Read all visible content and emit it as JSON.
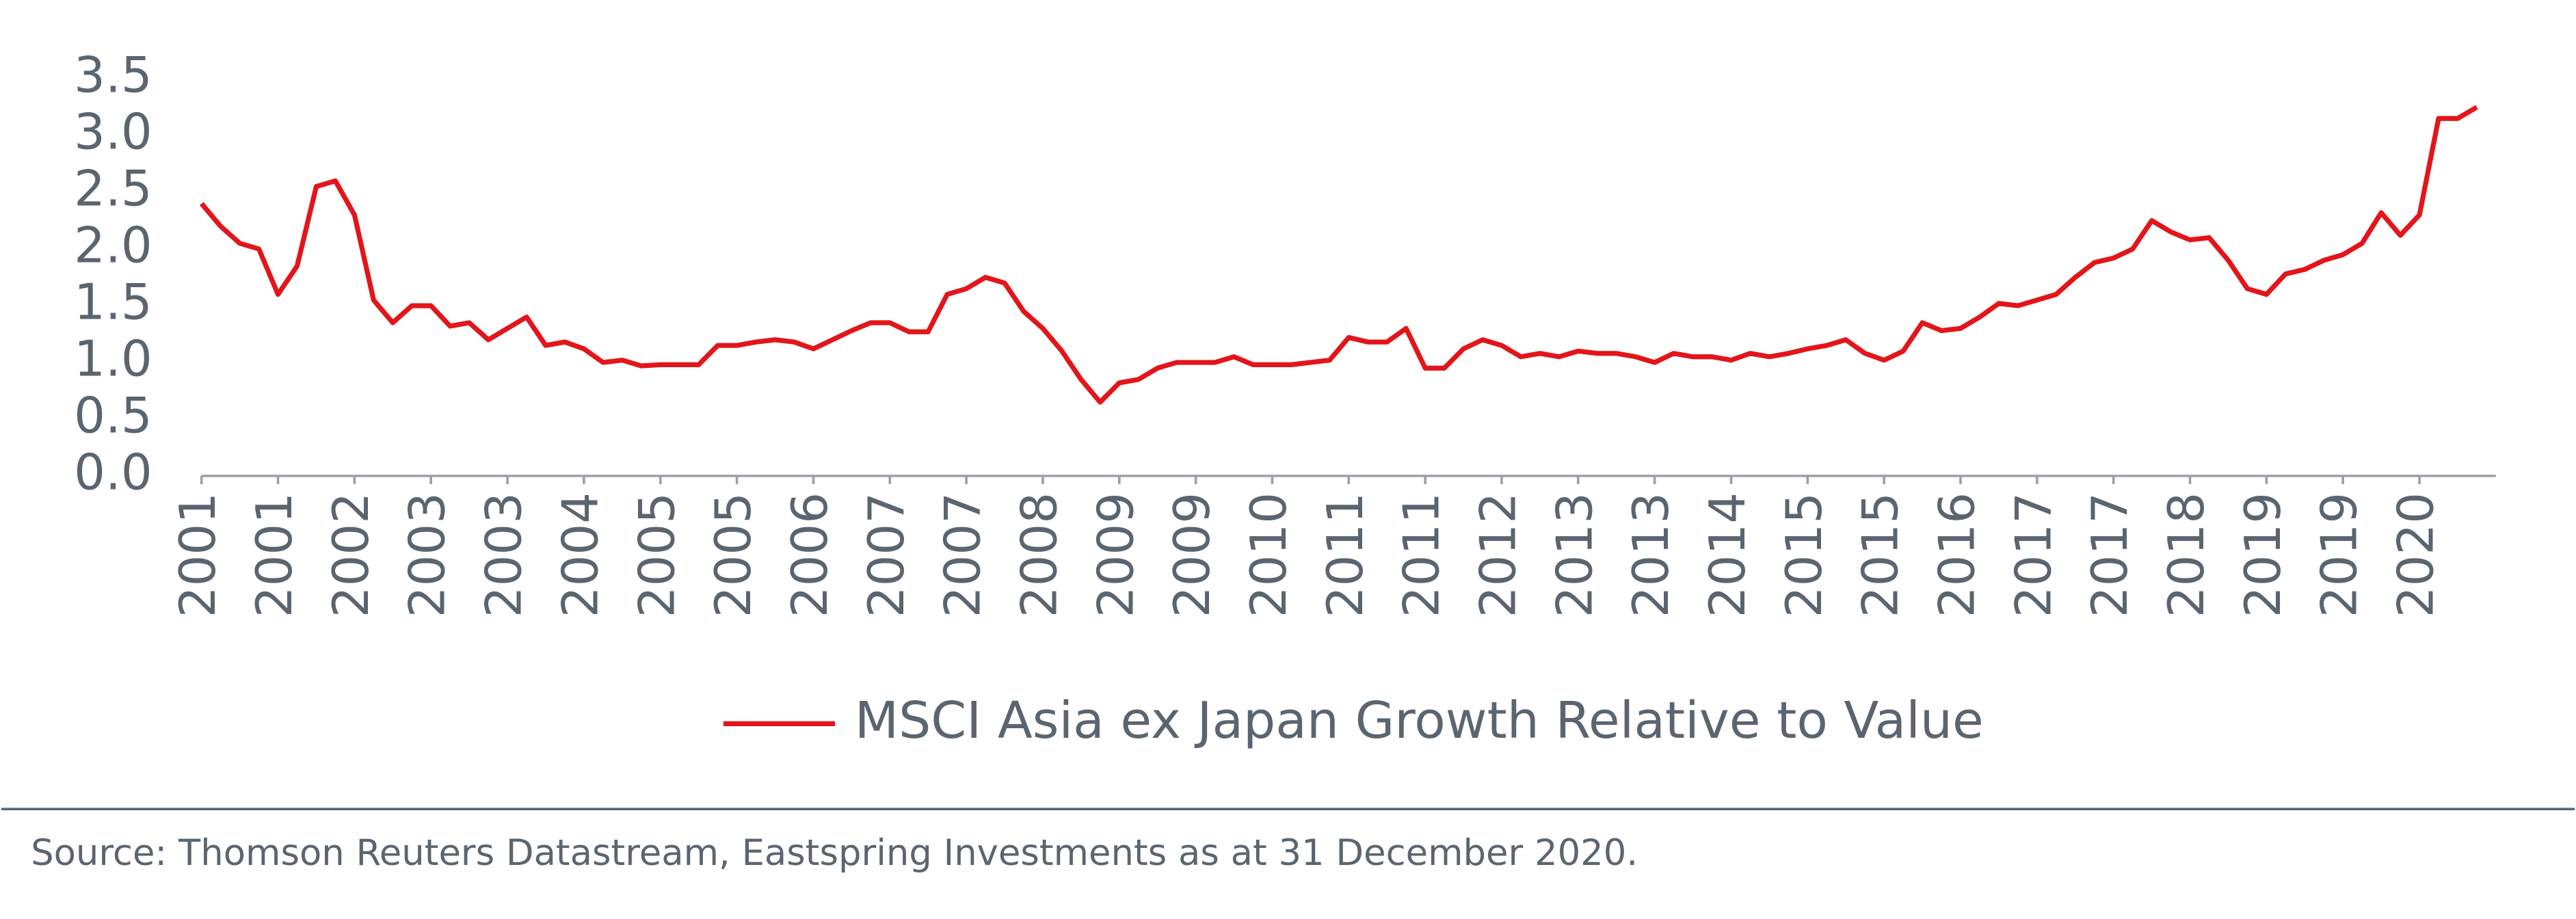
{
  "chart_data": {
    "type": "line",
    "categories": [
      "2001",
      null,
      null,
      null,
      "2001",
      null,
      null,
      null,
      "2002",
      null,
      null,
      null,
      "2003",
      null,
      null,
      null,
      "2003",
      null,
      null,
      null,
      "2004",
      null,
      null,
      null,
      "2005",
      null,
      null,
      null,
      "2005",
      null,
      null,
      null,
      "2006",
      null,
      null,
      null,
      "2007",
      null,
      null,
      null,
      "2007",
      null,
      null,
      null,
      "2008",
      null,
      null,
      null,
      "2009",
      null,
      null,
      null,
      "2009",
      null,
      null,
      null,
      "2010",
      null,
      null,
      null,
      "2011",
      null,
      null,
      null,
      "2011",
      null,
      null,
      null,
      "2012",
      null,
      null,
      null,
      "2013",
      null,
      null,
      null,
      "2013",
      null,
      null,
      null,
      "2014",
      null,
      null,
      null,
      "2015",
      null,
      null,
      null,
      "2015",
      null,
      null,
      null,
      "2016",
      null,
      null,
      null,
      "2017",
      null,
      null,
      null,
      "2017",
      null,
      null,
      null,
      "2018",
      null,
      null,
      null,
      "2019",
      null,
      null,
      null,
      "2019",
      null,
      null,
      null,
      "2020",
      null,
      null,
      null
    ],
    "series": [
      {
        "name": "MSCI Asia ex Japan Growth Relative to Value",
        "color": "#e3151a",
        "values": [
          2.4,
          2.2,
          2.05,
          2.0,
          1.6,
          1.85,
          2.55,
          2.6,
          2.3,
          1.55,
          1.35,
          1.5,
          1.5,
          1.32,
          1.35,
          1.2,
          1.3,
          1.4,
          1.15,
          1.18,
          1.12,
          1.0,
          1.02,
          0.97,
          0.98,
          0.98,
          0.98,
          1.15,
          1.15,
          1.18,
          1.2,
          1.18,
          1.12,
          1.2,
          1.28,
          1.35,
          1.35,
          1.27,
          1.27,
          1.6,
          1.65,
          1.75,
          1.7,
          1.45,
          1.3,
          1.1,
          0.85,
          0.65,
          0.82,
          0.85,
          0.95,
          1.0,
          1.0,
          1.0,
          1.05,
          0.98,
          0.98,
          0.98,
          1.0,
          1.02,
          1.22,
          1.18,
          1.18,
          1.3,
          0.95,
          0.95,
          1.12,
          1.2,
          1.15,
          1.05,
          1.08,
          1.05,
          1.1,
          1.08,
          1.08,
          1.05,
          1.0,
          1.08,
          1.05,
          1.05,
          1.02,
          1.08,
          1.05,
          1.08,
          1.12,
          1.15,
          1.2,
          1.08,
          1.02,
          1.1,
          1.35,
          1.28,
          1.3,
          1.4,
          1.52,
          1.5,
          1.55,
          1.6,
          1.75,
          1.88,
          1.92,
          2.0,
          2.25,
          2.15,
          2.08,
          2.1,
          1.9,
          1.65,
          1.6,
          1.78,
          1.82,
          1.9,
          1.95,
          2.05,
          2.32,
          2.12,
          2.3,
          3.15,
          3.15,
          3.25
        ]
      }
    ],
    "ylim": [
      0,
      3.5
    ],
    "yticks": [
      {
        "value": 0,
        "label": "0.0"
      },
      0.5,
      {
        "value": 1,
        "label": "1.0"
      },
      1.5,
      {
        "value": 2,
        "label": "2.0"
      },
      2.5,
      {
        "value": 3,
        "label": "3.0"
      },
      3.5
    ],
    "grid": false,
    "legend": "bottom",
    "source": "Source: Thomson Reuters Datastream, Eastspring Investments as at 31 December 2020."
  }
}
